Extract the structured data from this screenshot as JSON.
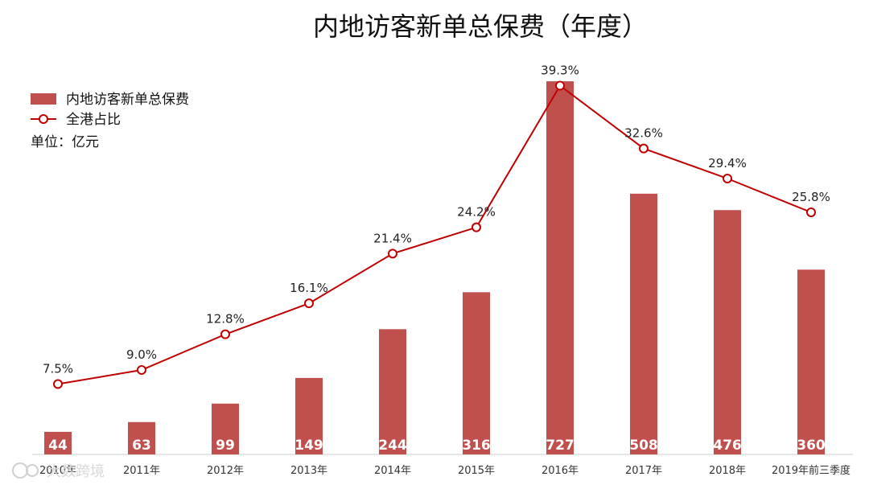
{
  "chart_data": {
    "type": "bar",
    "title": "内地访客新单总保费（年度）",
    "unit_label": "单位：亿元",
    "categories": [
      "2010年",
      "2011年",
      "2012年",
      "2013年",
      "2014年",
      "2015年",
      "2016年",
      "2017年",
      "2018年",
      "2019年前三季度"
    ],
    "series": [
      {
        "name": "内地访客新单总保费",
        "type": "bar",
        "color": "#c0504d",
        "values": [
          44,
          63,
          99,
          149,
          244,
          316,
          727,
          508,
          476,
          360
        ]
      },
      {
        "name": "全港占比",
        "type": "line",
        "color": "#c00000",
        "values": [
          7.5,
          9.0,
          12.8,
          16.1,
          21.4,
          24.2,
          39.3,
          32.6,
          29.4,
          25.8
        ],
        "labels": [
          "7.5%",
          "9.0%",
          "12.8%",
          "16.1%",
          "21.4%",
          "24.2%",
          "39.3%",
          "32.6%",
          "29.4%",
          "25.8%"
        ]
      }
    ],
    "ylim_bar": [
      0,
      760
    ],
    "ylim_line": [
      0,
      42
    ],
    "grid": false,
    "legend_position": "top-left"
  },
  "watermark": {
    "text": "大数跨境"
  }
}
